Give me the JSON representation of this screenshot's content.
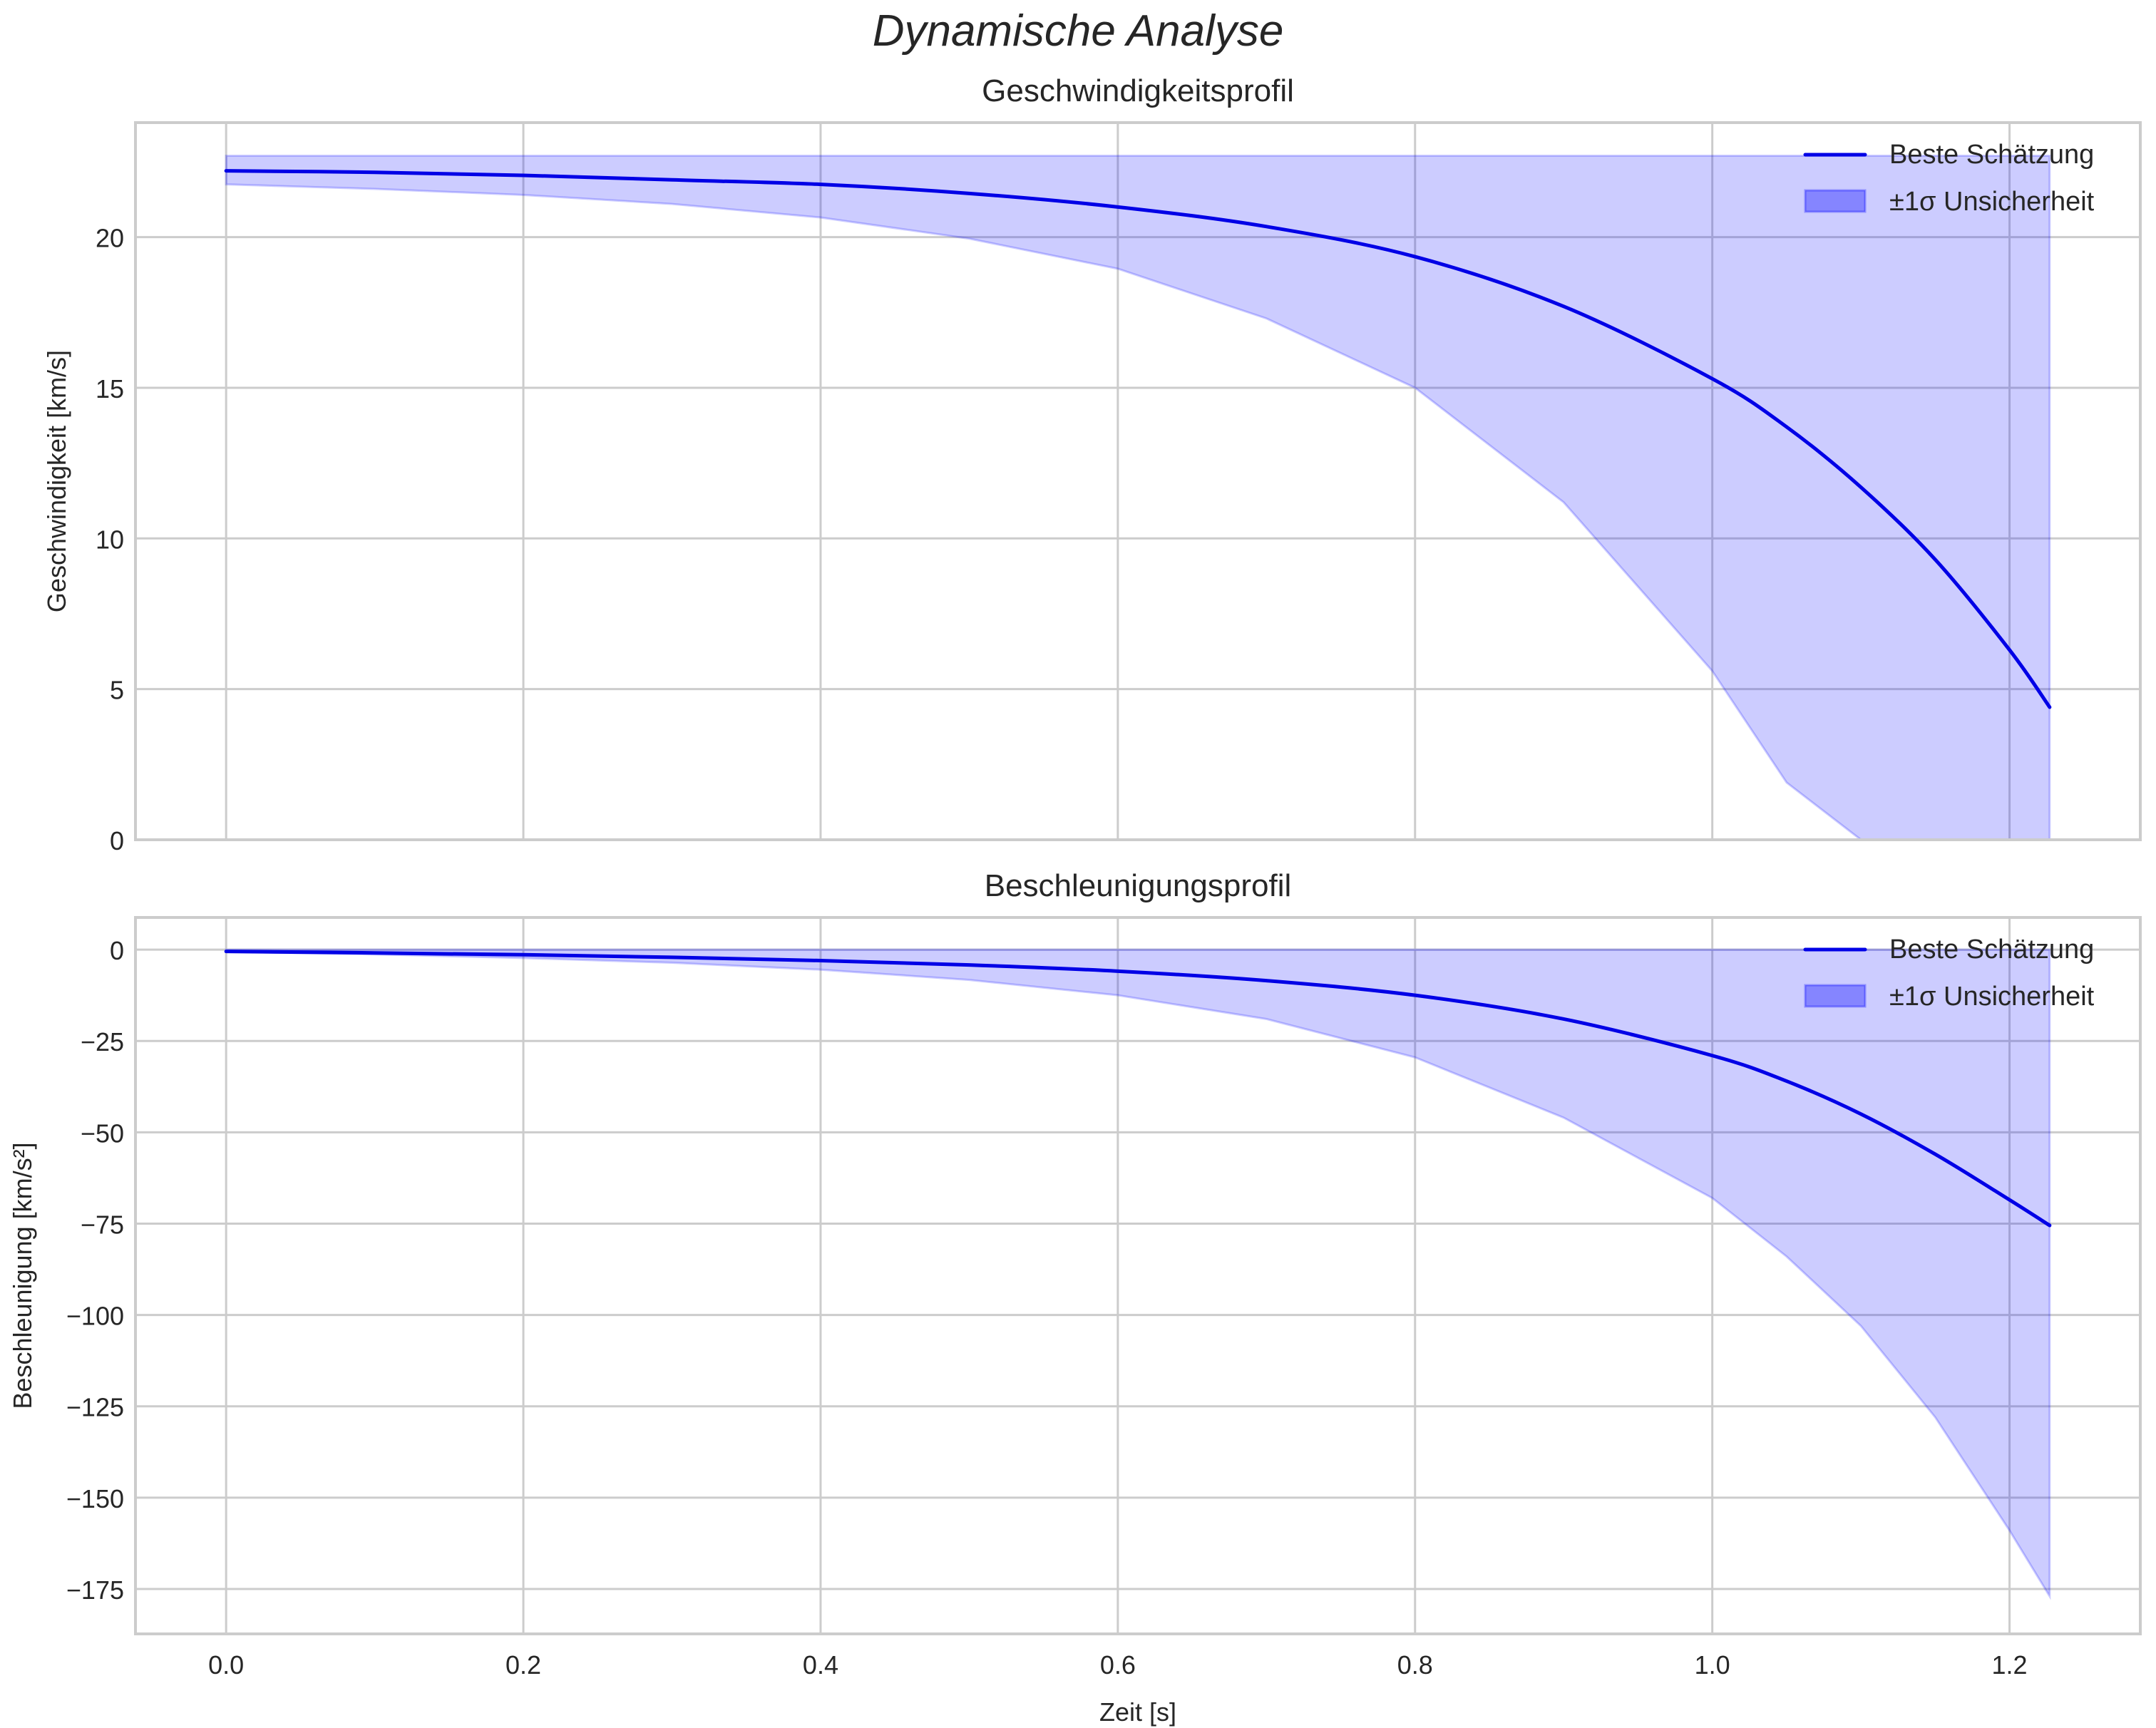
{
  "figure": {
    "suptitle": "Dynamische Analyse",
    "colors": {
      "line": "#0000e6",
      "band_fill": "#0000ff",
      "band_alpha": 0.2,
      "grid": "#cccccc",
      "spine": "#cccccc",
      "text": "#262626"
    }
  },
  "chart_data": [
    {
      "type": "line",
      "title": "Geschwindigkeitsprofil",
      "xlabel": "",
      "ylabel": "Geschwindigkeit [km/s]",
      "xlim": [
        -0.061,
        1.288
      ],
      "ylim": [
        0,
        23.8
      ],
      "xticks": [
        "0.0",
        "0.2",
        "0.4",
        "0.6",
        "0.8",
        "1.0",
        "1.2"
      ],
      "xticks_visible": false,
      "yticks": [
        0,
        5,
        10,
        15,
        20
      ],
      "ytick_labels": [
        "0",
        "5",
        "10",
        "15",
        "20"
      ],
      "grid": true,
      "legend_position": "upper right",
      "legend": [
        "Beste Schätzung",
        "±1σ Unsicherheit"
      ],
      "x": [
        0.0,
        0.1,
        0.2,
        0.3,
        0.4,
        0.5,
        0.6,
        0.7,
        0.8,
        0.9,
        1.0,
        1.05,
        1.1,
        1.15,
        1.2,
        1.227
      ],
      "series": [
        {
          "name": "Beste Schätzung",
          "values": [
            22.2,
            22.15,
            22.05,
            21.9,
            21.75,
            21.45,
            21.0,
            20.35,
            19.35,
            17.7,
            15.3,
            13.7,
            11.7,
            9.3,
            6.3,
            4.4
          ]
        },
        {
          "name": "±1σ Unsicherheit (obere Grenze)",
          "values": [
            22.7,
            22.7,
            22.7,
            22.7,
            22.7,
            22.7,
            22.7,
            22.7,
            22.7,
            22.7,
            22.7,
            22.7,
            22.7,
            22.7,
            22.7,
            22.7
          ]
        },
        {
          "name": "±1σ Unsicherheit (untere Grenze)",
          "values": [
            21.75,
            21.6,
            21.4,
            21.1,
            20.65,
            19.95,
            18.95,
            17.3,
            15.0,
            11.2,
            5.6,
            1.9,
            0,
            0,
            0,
            0
          ]
        }
      ]
    },
    {
      "type": "line",
      "title": "Beschleunigungsprofil",
      "xlabel": "Zeit [s]",
      "ylabel": "Beschleunigung [km/s²]",
      "xlim": [
        -0.061,
        1.288
      ],
      "ylim": [
        -187.3,
        8.8
      ],
      "xticks": [
        0.0,
        0.2,
        0.4,
        0.6,
        0.8,
        1.0,
        1.2
      ],
      "xtick_labels": [
        "0.0",
        "0.2",
        "0.4",
        "0.6",
        "0.8",
        "1.0",
        "1.2"
      ],
      "yticks": [
        0,
        -25,
        -50,
        -75,
        -100,
        -125,
        -150,
        -175
      ],
      "ytick_labels": [
        "0",
        "−25",
        "−50",
        "−75",
        "−100",
        "−125",
        "−150",
        "−175"
      ],
      "grid": true,
      "legend_position": "upper right",
      "legend": [
        "Beste Schätzung",
        "±1σ Unsicherheit"
      ],
      "x": [
        0.0,
        0.1,
        0.2,
        0.3,
        0.4,
        0.5,
        0.6,
        0.7,
        0.8,
        0.9,
        1.0,
        1.05,
        1.1,
        1.15,
        1.2,
        1.227
      ],
      "series": [
        {
          "name": "Beste Schätzung",
          "values": [
            -0.5,
            -0.9,
            -1.4,
            -2.1,
            -3.0,
            -4.2,
            -5.9,
            -8.5,
            -12.5,
            -19.0,
            -29.0,
            -36.0,
            -45.0,
            -56.0,
            -68.5,
            -75.5
          ]
        },
        {
          "name": "±1σ Unsicherheit (obere Grenze)",
          "values": [
            0,
            0,
            0,
            0,
            0,
            0,
            0,
            0,
            0,
            0,
            0,
            0,
            0,
            0,
            0,
            0
          ]
        },
        {
          "name": "±1σ Unsicherheit (untere Grenze)",
          "values": [
            -0.6,
            -1.3,
            -2.3,
            -3.6,
            -5.5,
            -8.3,
            -12.5,
            -19.0,
            -29.5,
            -46.0,
            -68.0,
            -84.0,
            -103.0,
            -128.0,
            -159.0,
            -177.0
          ]
        }
      ]
    }
  ]
}
